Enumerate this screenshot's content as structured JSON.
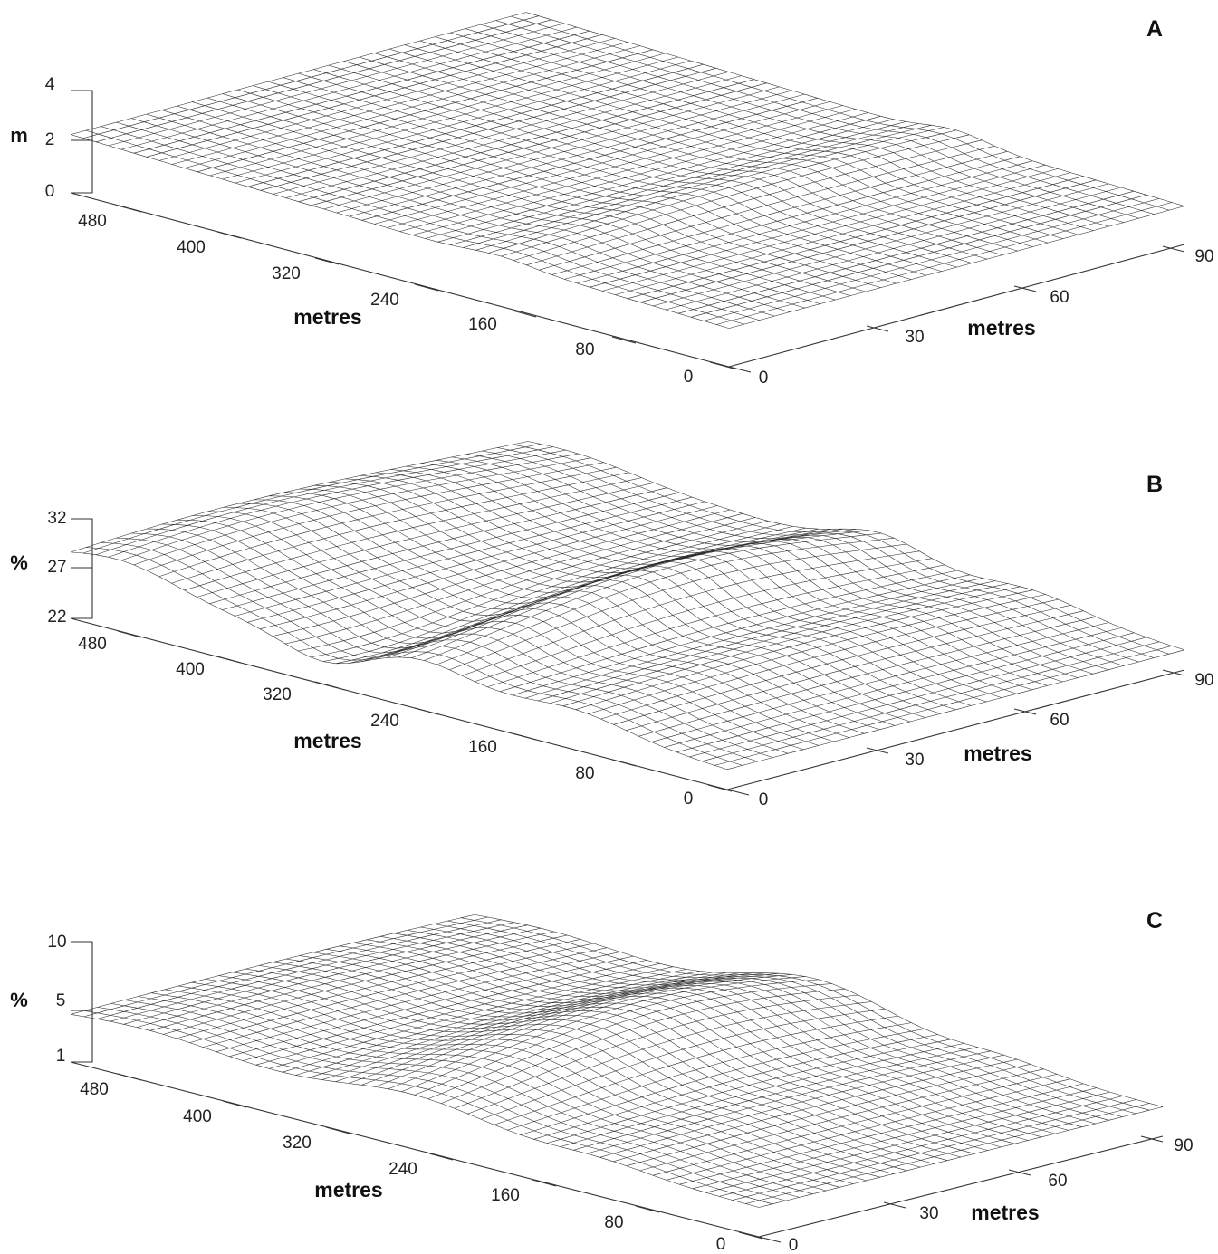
{
  "chart_data": [
    {
      "type": "surface",
      "panel_label": "A",
      "z_unit": "m",
      "z_ticks": [
        "4",
        "2",
        "0"
      ],
      "z_range": [
        0,
        4
      ],
      "x_label": "metres",
      "x_ticks": [
        "480",
        "400",
        "320",
        "240",
        "160",
        "80",
        "0"
      ],
      "x_range": [
        0,
        520
      ],
      "y_label": "metres",
      "y_ticks": [
        "90",
        "60",
        "30",
        "0"
      ],
      "y_range": [
        0,
        90
      ],
      "grid": "wireframe mesh",
      "surface": {
        "base": 1.5,
        "tilt_x": 0.0015,
        "bumps": [
          {
            "x": 180,
            "y": 55,
            "sx": 25,
            "sy": 40,
            "a": 0.5
          }
        ]
      }
    },
    {
      "type": "surface",
      "panel_label": "B",
      "z_unit": "%",
      "z_ticks": [
        "32",
        "27",
        "22"
      ],
      "z_range": [
        22,
        32
      ],
      "x_label": "metres",
      "x_ticks": [
        "480",
        "400",
        "320",
        "240",
        "160",
        "80",
        "0"
      ],
      "x_range": [
        0,
        520
      ],
      "y_label": "metres",
      "y_ticks": [
        "90",
        "60",
        "30",
        "0"
      ],
      "y_range": [
        0,
        90
      ],
      "grid": "wireframe mesh",
      "surface": {
        "base": 24,
        "tilt_x": 0.006,
        "bumps": [
          {
            "x": 480,
            "y": 30,
            "sx": 45,
            "sy": 40,
            "a": 3.0
          },
          {
            "x": 240,
            "y": 50,
            "sx": 35,
            "sy": 35,
            "a": 4.5
          },
          {
            "x": 120,
            "y": 45,
            "sx": 40,
            "sy": 50,
            "a": 2.0
          },
          {
            "x": 320,
            "y": 10,
            "sx": 30,
            "sy": 20,
            "a": -2.0
          }
        ]
      }
    },
    {
      "type": "surface",
      "panel_label": "C",
      "z_unit": "%",
      "z_ticks": [
        "10",
        "5",
        "1"
      ],
      "z_range": [
        1,
        10
      ],
      "x_label": "metres",
      "x_ticks": [
        "480",
        "400",
        "320",
        "240",
        "160",
        "80",
        "0"
      ],
      "x_range": [
        0,
        520
      ],
      "y_label": "metres",
      "y_ticks": [
        "90",
        "60",
        "30",
        "0"
      ],
      "y_range": [
        0,
        90
      ],
      "grid": "wireframe mesh",
      "surface": {
        "base": 3.2,
        "tilt_x": 0.0015,
        "bumps": [
          {
            "x": 260,
            "y": 55,
            "sx": 55,
            "sy": 40,
            "a": 3.8
          },
          {
            "x": 460,
            "y": 40,
            "sx": 60,
            "sy": 60,
            "a": 1.2
          },
          {
            "x": 120,
            "y": 50,
            "sx": 35,
            "sy": 50,
            "a": 0.8
          }
        ]
      }
    }
  ]
}
